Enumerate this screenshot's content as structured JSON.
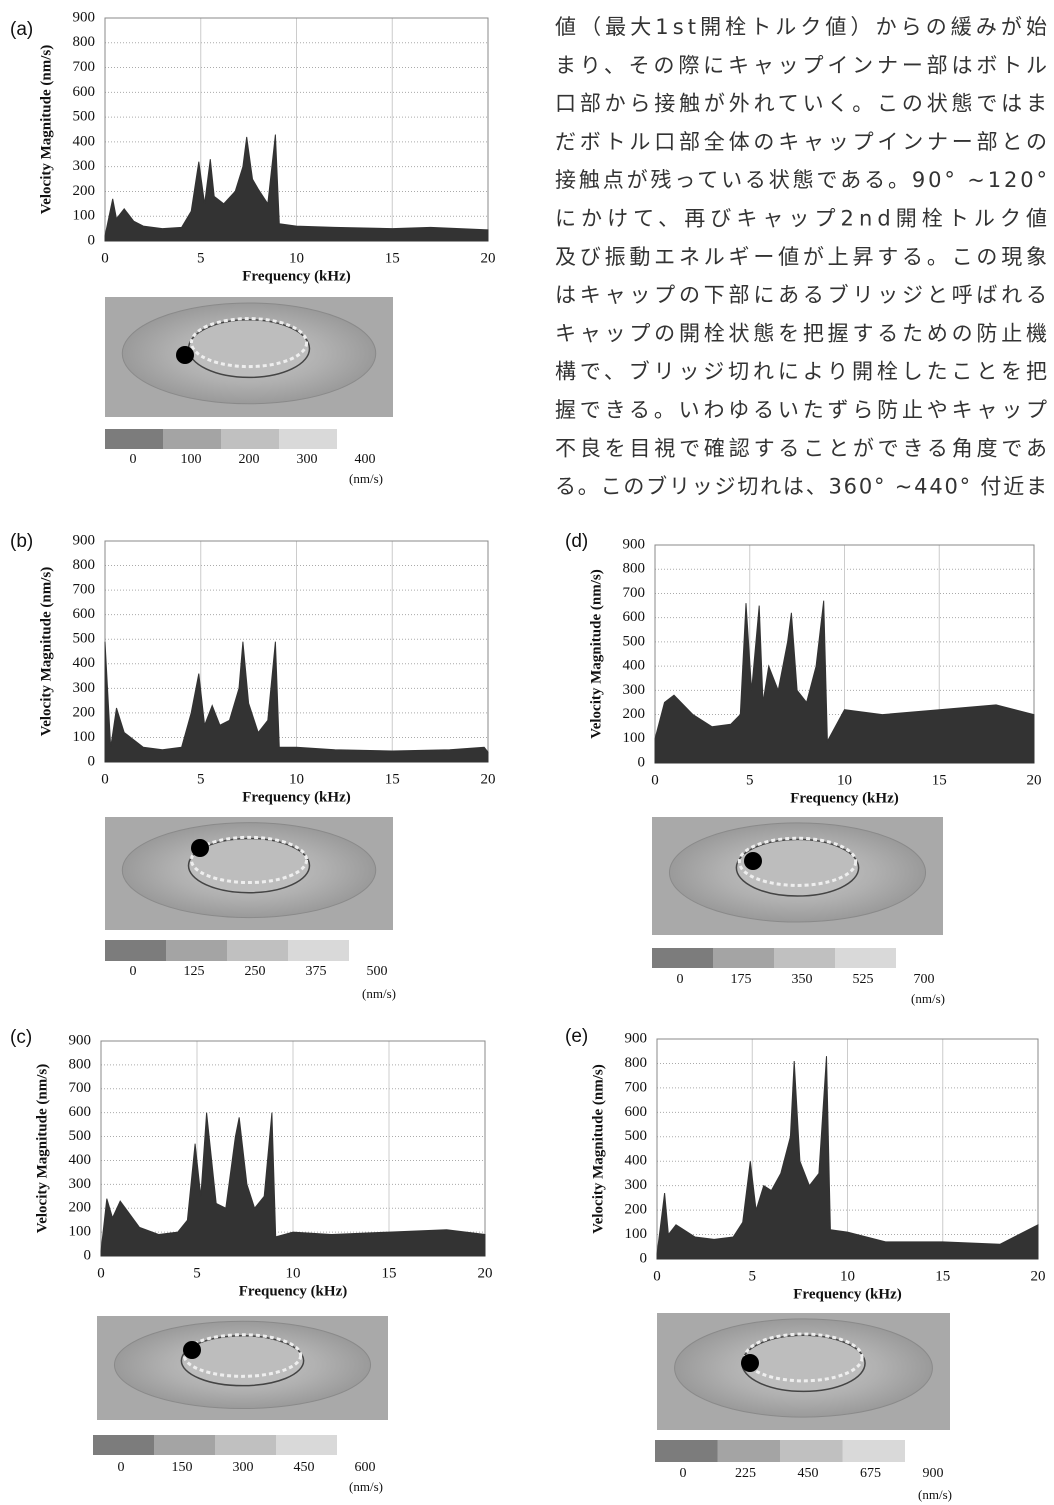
{
  "paragraph": {
    "lines": [
      "値（最大1st開栓トルク値）からの緩みが始",
      "まり、その際にキャップインナー部はボトル",
      "口部から接触が外れていく。この状態ではま",
      "だボトル口部全体のキャップインナー部との",
      "接触点が残っている状態である。90° ~120°",
      "にかけて、再びキャップ2nd開栓トルク値",
      "及び振動エネルギー値が上昇する。この現象",
      "はキャップの下部にあるブリッジと呼ばれる",
      "キャップの開栓状態を把握するための防止機",
      "構で、ブリッジ切れにより開栓したことを把",
      "握できる。いわゆるいたずら防止やキャップ",
      "不良を目視で確認することができる角度であ",
      "る。このブリッジ切れは、360° ~440° 付近ま"
    ]
  },
  "chart_data": [
    {
      "type": "area",
      "label": "(a)",
      "xlabel": "Frequency (kHz)",
      "ylabel": "Velocity Magnitude (nm/s)",
      "color": "#333333",
      "x": [
        0,
        0.4,
        0.6,
        1,
        1.5,
        2,
        3,
        4,
        4.5,
        4.9,
        5.2,
        5.5,
        5.7,
        6.2,
        6.8,
        7.2,
        7.4,
        7.7,
        8,
        8.5,
        8.9,
        9.1,
        10,
        12,
        15,
        17,
        20
      ],
      "values": [
        20,
        170,
        90,
        130,
        80,
        60,
        50,
        55,
        120,
        320,
        150,
        330,
        180,
        150,
        200,
        300,
        420,
        250,
        210,
        150,
        430,
        70,
        60,
        55,
        50,
        55,
        45
      ],
      "xlim": [
        0,
        20
      ],
      "ylim": [
        0,
        900
      ],
      "xticks": [
        0,
        5,
        10,
        15,
        20
      ],
      "yticks": [
        0,
        100,
        200,
        300,
        400,
        500,
        600,
        700,
        800,
        900
      ],
      "grid": true,
      "colorbar": {
        "colors": [
          "#7c7c7c",
          "#a4a4a4",
          "#c0c0c0",
          "#d9d9d9"
        ],
        "ticks": [
          0,
          100,
          200,
          300,
          400
        ],
        "unit": "(nm/s)"
      }
    },
    {
      "type": "area",
      "label": "(b)",
      "xlabel": "Frequency (kHz)",
      "ylabel": "Velocity Magnitude (nm/s)",
      "color": "#333333",
      "x": [
        0,
        0.3,
        0.6,
        1,
        2,
        3,
        4,
        4.5,
        4.9,
        5.2,
        5.6,
        6,
        6.5,
        7,
        7.2,
        7.5,
        8,
        8.5,
        8.9,
        9.1,
        10,
        12,
        15,
        18,
        19.8,
        20
      ],
      "values": [
        490,
        60,
        220,
        120,
        60,
        50,
        60,
        200,
        360,
        150,
        230,
        150,
        170,
        300,
        490,
        240,
        120,
        170,
        490,
        60,
        60,
        50,
        45,
        50,
        60,
        40
      ],
      "xlim": [
        0,
        20
      ],
      "ylim": [
        0,
        900
      ],
      "xticks": [
        0,
        5,
        10,
        15,
        20
      ],
      "yticks": [
        0,
        100,
        200,
        300,
        400,
        500,
        600,
        700,
        800,
        900
      ],
      "grid": true,
      "colorbar": {
        "colors": [
          "#7c7c7c",
          "#a4a4a4",
          "#c0c0c0",
          "#d9d9d9"
        ],
        "ticks": [
          0,
          125,
          250,
          375,
          500
        ],
        "unit": "(nm/s)"
      }
    },
    {
      "type": "area",
      "label": "(c)",
      "xlabel": "Frequency (kHz)",
      "ylabel": "Velocity Magnitude (nm/s)",
      "color": "#333333",
      "x": [
        0,
        0.3,
        0.6,
        1,
        2,
        3,
        4,
        4.5,
        4.9,
        5.2,
        5.5,
        6,
        6.5,
        7,
        7.2,
        7.6,
        8,
        8.5,
        8.9,
        9.1,
        10,
        12,
        15,
        18,
        20
      ],
      "values": [
        20,
        240,
        160,
        230,
        120,
        90,
        100,
        150,
        470,
        250,
        600,
        220,
        200,
        500,
        580,
        300,
        200,
        250,
        600,
        80,
        100,
        90,
        100,
        110,
        90
      ],
      "xlim": [
        0,
        20
      ],
      "ylim": [
        0,
        900
      ],
      "xticks": [
        0,
        5,
        10,
        15,
        20
      ],
      "yticks": [
        0,
        100,
        200,
        300,
        400,
        500,
        600,
        700,
        800,
        900
      ],
      "grid": true,
      "colorbar": {
        "colors": [
          "#7c7c7c",
          "#a4a4a4",
          "#c0c0c0",
          "#d9d9d9"
        ],
        "ticks": [
          0,
          150,
          300,
          450,
          600
        ],
        "unit": "(nm/s)"
      }
    },
    {
      "type": "area",
      "label": "(d)",
      "xlabel": "Frequency (kHz)",
      "ylabel": "Velocity Magnitude (nm/s)",
      "color": "#333333",
      "x": [
        0,
        0.5,
        1,
        2,
        3,
        4,
        4.5,
        4.8,
        5.1,
        5.5,
        5.7,
        6,
        6.5,
        7,
        7.2,
        7.5,
        8,
        8.5,
        8.9,
        9.1,
        10,
        12,
        15,
        18,
        20
      ],
      "values": [
        100,
        250,
        280,
        200,
        150,
        160,
        200,
        660,
        300,
        650,
        250,
        400,
        300,
        500,
        620,
        300,
        250,
        400,
        670,
        90,
        220,
        200,
        220,
        240,
        200
      ],
      "xlim": [
        0,
        20
      ],
      "ylim": [
        0,
        900
      ],
      "xticks": [
        0,
        5,
        10,
        15,
        20
      ],
      "yticks": [
        0,
        100,
        200,
        300,
        400,
        500,
        600,
        700,
        800,
        900
      ],
      "grid": true,
      "colorbar": {
        "colors": [
          "#7c7c7c",
          "#a4a4a4",
          "#c0c0c0",
          "#d9d9d9"
        ],
        "ticks": [
          0,
          175,
          350,
          525,
          700
        ],
        "unit": "(nm/s)"
      }
    },
    {
      "type": "area",
      "label": "(e)",
      "xlabel": "Frequency (kHz)",
      "ylabel": "Velocity Magnitude (nm/s)",
      "color": "#333333",
      "x": [
        0,
        0.4,
        0.6,
        1,
        2,
        3,
        4,
        4.5,
        4.9,
        5.2,
        5.6,
        6,
        6.5,
        7,
        7.2,
        7.5,
        8,
        8.5,
        8.9,
        9.1,
        10,
        12,
        15,
        18,
        20
      ],
      "values": [
        20,
        270,
        100,
        140,
        90,
        80,
        90,
        150,
        400,
        200,
        300,
        280,
        350,
        500,
        810,
        400,
        300,
        350,
        830,
        120,
        110,
        70,
        70,
        60,
        140
      ],
      "xlim": [
        0,
        20
      ],
      "ylim": [
        0,
        900
      ],
      "xticks": [
        0,
        5,
        10,
        15,
        20
      ],
      "yticks": [
        0,
        100,
        200,
        300,
        400,
        500,
        600,
        700,
        800,
        900
      ],
      "grid": true,
      "colorbar": {
        "colors": [
          "#7c7c7c",
          "#a4a4a4",
          "#c0c0c0",
          "#d9d9d9"
        ],
        "ticks": [
          0,
          225,
          450,
          675,
          900
        ],
        "unit": "(nm/s)"
      }
    }
  ]
}
